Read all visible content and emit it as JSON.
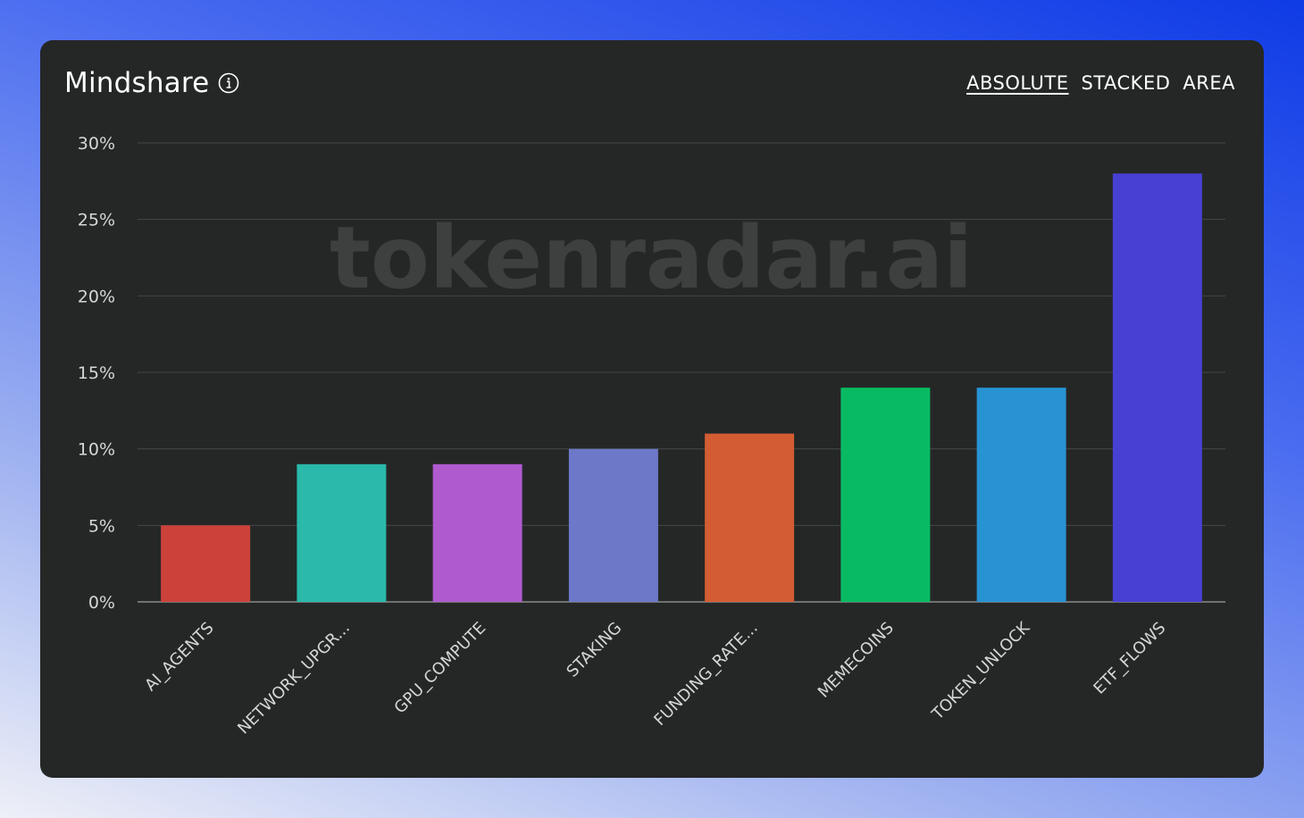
{
  "header": {
    "title": "Mindshare",
    "info_icon": "info-circle-icon",
    "toggles": [
      {
        "label": "ABSOLUTE",
        "active": true
      },
      {
        "label": "STACKED",
        "active": false
      },
      {
        "label": "AREA",
        "active": false
      }
    ]
  },
  "watermark": "tokenradar.ai",
  "chart_data": {
    "type": "bar",
    "categories": [
      "AI_AGENTS",
      "NETWORK_UPGR...",
      "GPU_COMPUTE",
      "STAKING",
      "FUNDING_RATE...",
      "MEMECOINS",
      "TOKEN_UNLOCK",
      "ETF_FLOWS"
    ],
    "values": [
      5,
      9,
      9,
      10,
      11,
      14,
      14,
      28
    ],
    "colors": [
      "#cc423a",
      "#2ab9aa",
      "#b05ad0",
      "#6d79c8",
      "#d35c33",
      "#08bb62",
      "#2893d3",
      "#4840d2"
    ],
    "ylim": [
      0,
      30
    ],
    "yticks": [
      "0%",
      "5%",
      "10%",
      "15%",
      "20%",
      "25%",
      "30%"
    ],
    "ytick_values": [
      0,
      5,
      10,
      15,
      20,
      25,
      30
    ],
    "grid": true
  }
}
